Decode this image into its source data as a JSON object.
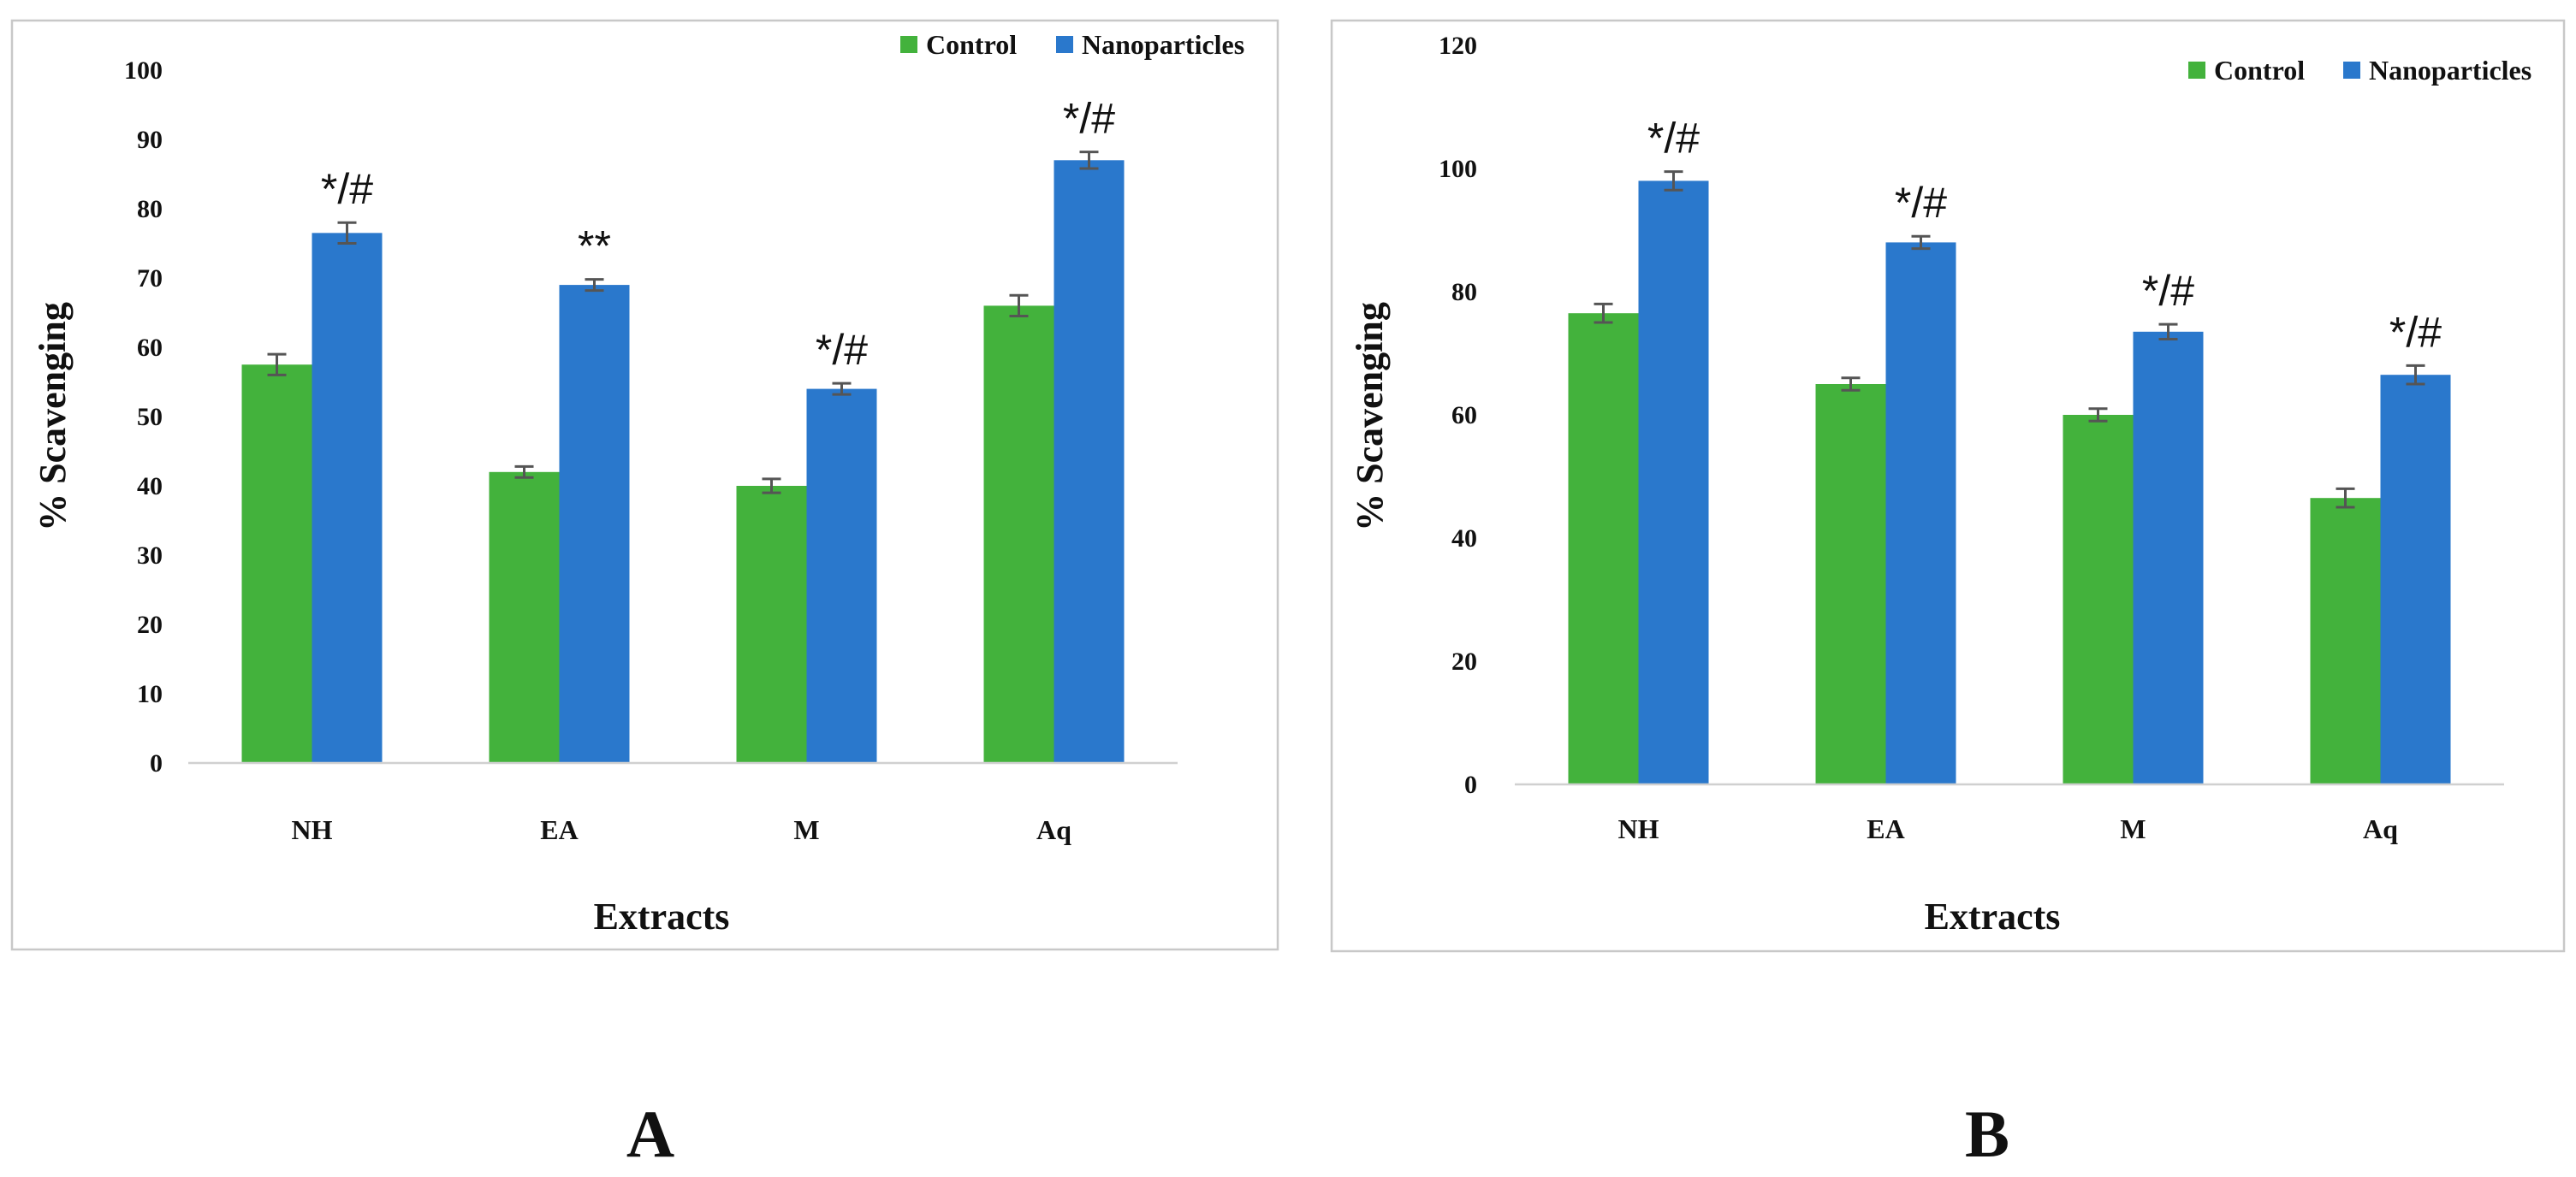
{
  "chart_data": [
    {
      "panel_label": "A",
      "type": "bar",
      "categories": [
        "NH",
        "EA",
        "M",
        "Aq"
      ],
      "series": [
        {
          "name": "Control",
          "color": "#43b23c",
          "values": [
            57.5,
            42,
            40,
            66
          ],
          "errors": [
            1.5,
            0.8,
            1.0,
            1.5
          ]
        },
        {
          "name": "Nanoparticles",
          "color": "#2a78cc",
          "values": [
            76.5,
            69,
            54,
            87
          ],
          "errors": [
            1.5,
            0.8,
            0.8,
            1.2
          ]
        }
      ],
      "annotations": [
        "*/#",
        "**",
        "*/#",
        "*/#"
      ],
      "title": "",
      "xlabel": "Extracts",
      "ylabel": "% Scavenging",
      "ylim": [
        0,
        100
      ],
      "yticks": [
        0,
        10,
        20,
        30,
        40,
        50,
        60,
        70,
        80,
        90,
        100
      ],
      "grid": false,
      "legend_position": "top-right"
    },
    {
      "panel_label": "B",
      "type": "bar",
      "categories": [
        "NH",
        "EA",
        "M",
        "Aq"
      ],
      "series": [
        {
          "name": "Control",
          "color": "#43b23c",
          "values": [
            76.5,
            65,
            60,
            46.5
          ],
          "errors": [
            1.5,
            1.0,
            1.0,
            1.5
          ]
        },
        {
          "name": "Nanoparticles",
          "color": "#2a78cc",
          "values": [
            98,
            88,
            73.5,
            66.5
          ],
          "errors": [
            1.5,
            1.0,
            1.2,
            1.5
          ]
        }
      ],
      "annotations": [
        "*/#",
        "*/#",
        "*/#",
        "*/#"
      ],
      "title": "",
      "xlabel": "Extracts",
      "ylabel": "% Scavenging",
      "ylim": [
        0,
        120
      ],
      "yticks": [
        0,
        20,
        40,
        60,
        80,
        100,
        120
      ],
      "grid": false,
      "legend_position": "top-right"
    }
  ]
}
